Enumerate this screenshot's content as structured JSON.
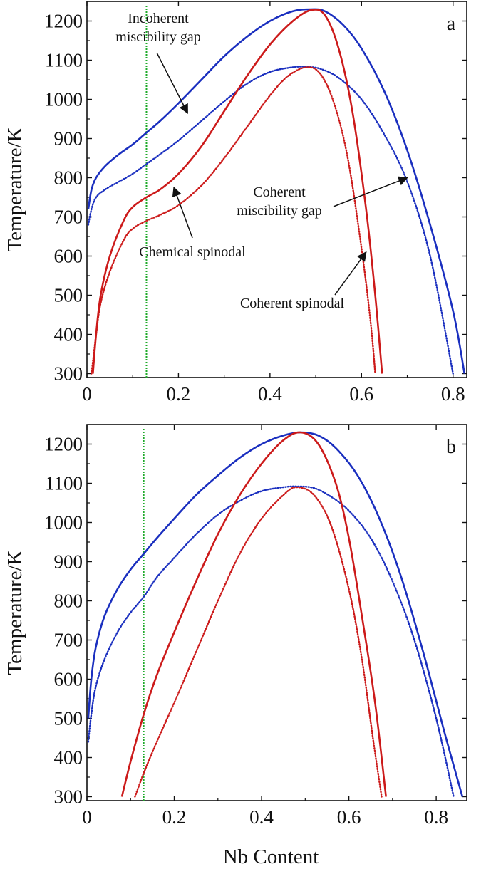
{
  "chart_data": [
    {
      "type": "line",
      "panel_label": "a",
      "ylabel": "Temperature/K",
      "xlabel": "",
      "xlim": [
        0,
        0.83
      ],
      "ylim": [
        290,
        1250
      ],
      "xticks": [
        0,
        0.2,
        0.4,
        0.6,
        0.8
      ],
      "xtick_labels": [
        "0",
        "0.2",
        "0.4",
        "0.6",
        "0.8"
      ],
      "yticks": [
        300,
        400,
        500,
        600,
        700,
        800,
        900,
        1000,
        1100,
        1200
      ],
      "ytick_labels": [
        "300",
        "400",
        "500",
        "600",
        "700",
        "800",
        "900",
        "1000",
        "1100",
        "1200"
      ],
      "grid": false,
      "reference_line": {
        "x": 0.13,
        "color": "#1faa2a",
        "style": "dotted"
      },
      "series": [
        {
          "color": "#1a2fbf",
          "style": "solid",
          "x": [
            0.003,
            0.01,
            0.02,
            0.04,
            0.07,
            0.1,
            0.13,
            0.16,
            0.2,
            0.25,
            0.3,
            0.35,
            0.4,
            0.45,
            0.49,
            0.52,
            0.56,
            0.6,
            0.65,
            0.7,
            0.75,
            0.8,
            0.825
          ],
          "y": [
            720,
            770,
            800,
            830,
            860,
            885,
            915,
            945,
            990,
            1050,
            1110,
            1160,
            1200,
            1225,
            1230,
            1225,
            1190,
            1130,
            1020,
            870,
            680,
            460,
            300
          ]
        },
        {
          "color": "#1a2fbf",
          "style": "dotted",
          "x": [
            0.003,
            0.01,
            0.02,
            0.04,
            0.07,
            0.1,
            0.13,
            0.16,
            0.2,
            0.25,
            0.3,
            0.35,
            0.4,
            0.45,
            0.48,
            0.51,
            0.55,
            0.6,
            0.65,
            0.7,
            0.75,
            0.8
          ],
          "y": [
            680,
            720,
            750,
            770,
            790,
            810,
            835,
            860,
            895,
            945,
            995,
            1040,
            1070,
            1082,
            1083,
            1078,
            1055,
            1000,
            910,
            790,
            600,
            300
          ]
        },
        {
          "color": "#cc1a1a",
          "style": "solid",
          "x": [
            0.013,
            0.02,
            0.03,
            0.05,
            0.08,
            0.1,
            0.13,
            0.16,
            0.2,
            0.25,
            0.3,
            0.35,
            0.4,
            0.45,
            0.49,
            0.52,
            0.55,
            0.58,
            0.61,
            0.63,
            0.645
          ],
          "y": [
            300,
            400,
            500,
            600,
            690,
            725,
            750,
            770,
            810,
            880,
            970,
            1060,
            1140,
            1200,
            1228,
            1215,
            1130,
            970,
            720,
            500,
            300
          ]
        },
        {
          "color": "#cc1a1a",
          "style": "dotted",
          "x": [
            0.01,
            0.02,
            0.03,
            0.05,
            0.08,
            0.1,
            0.13,
            0.16,
            0.2,
            0.25,
            0.3,
            0.35,
            0.4,
            0.44,
            0.48,
            0.51,
            0.54,
            0.57,
            0.6,
            0.62,
            0.63
          ],
          "y": [
            300,
            400,
            480,
            560,
            640,
            670,
            690,
            705,
            730,
            780,
            850,
            930,
            1010,
            1060,
            1082,
            1065,
            990,
            850,
            620,
            430,
            300
          ]
        }
      ],
      "annotations": [
        {
          "lines": [
            "Incoherent",
            "miscibility gap"
          ],
          "target": [
            0.22,
            965
          ]
        },
        {
          "lines": [
            "Chemical spinodal"
          ],
          "target": [
            0.19,
            775
          ]
        },
        {
          "lines": [
            "Coherent",
            "miscibility gap"
          ],
          "target": [
            0.7,
            800
          ]
        },
        {
          "lines": [
            "Coherent spinodal"
          ],
          "target": [
            0.61,
            610
          ]
        }
      ]
    },
    {
      "type": "line",
      "panel_label": "b",
      "ylabel": "Temperature/K",
      "xlabel": "Nb Content",
      "xlim": [
        0,
        0.87
      ],
      "ylim": [
        290,
        1250
      ],
      "xticks": [
        0,
        0.2,
        0.4,
        0.6,
        0.8
      ],
      "xtick_labels": [
        "0",
        "0.2",
        "0.4",
        "0.6",
        "0.8"
      ],
      "yticks": [
        300,
        400,
        500,
        600,
        700,
        800,
        900,
        1000,
        1100,
        1200
      ],
      "ytick_labels": [
        "300",
        "400",
        "500",
        "600",
        "700",
        "800",
        "900",
        "1000",
        "1100",
        "1200"
      ],
      "grid": false,
      "reference_line": {
        "x": 0.13,
        "color": "#1faa2a",
        "style": "dotted"
      },
      "series": [
        {
          "color": "#1a2fbf",
          "style": "solid",
          "x": [
            0.003,
            0.01,
            0.02,
            0.04,
            0.07,
            0.1,
            0.13,
            0.16,
            0.2,
            0.25,
            0.3,
            0.35,
            0.4,
            0.45,
            0.49,
            0.53,
            0.57,
            0.62,
            0.67,
            0.72,
            0.77,
            0.82,
            0.86
          ],
          "y": [
            500,
            600,
            680,
            760,
            830,
            880,
            920,
            960,
            1010,
            1070,
            1120,
            1165,
            1200,
            1222,
            1230,
            1222,
            1190,
            1120,
            1010,
            860,
            670,
            460,
            300
          ]
        },
        {
          "color": "#1a2fbf",
          "style": "dotted",
          "x": [
            0.003,
            0.01,
            0.02,
            0.04,
            0.07,
            0.1,
            0.13,
            0.16,
            0.2,
            0.25,
            0.3,
            0.35,
            0.4,
            0.45,
            0.48,
            0.52,
            0.56,
            0.6,
            0.65,
            0.7,
            0.75,
            0.8,
            0.84
          ],
          "y": [
            440,
            510,
            580,
            650,
            720,
            770,
            810,
            860,
            910,
            970,
            1020,
            1055,
            1080,
            1090,
            1092,
            1088,
            1065,
            1030,
            960,
            850,
            700,
            500,
            300
          ]
        },
        {
          "color": "#cc1a1a",
          "style": "solid",
          "x": [
            0.08,
            0.1,
            0.13,
            0.16,
            0.2,
            0.25,
            0.3,
            0.35,
            0.4,
            0.45,
            0.49,
            0.53,
            0.57,
            0.6,
            0.63,
            0.66,
            0.685
          ],
          "y": [
            300,
            390,
            510,
            610,
            720,
            850,
            970,
            1070,
            1150,
            1210,
            1230,
            1200,
            1100,
            960,
            760,
            540,
            300
          ]
        },
        {
          "color": "#cc1a1a",
          "style": "dotted",
          "x": [
            0.11,
            0.13,
            0.16,
            0.2,
            0.25,
            0.3,
            0.35,
            0.4,
            0.45,
            0.48,
            0.52,
            0.56,
            0.6,
            0.63,
            0.655,
            0.675
          ],
          "y": [
            300,
            360,
            440,
            540,
            670,
            800,
            920,
            1010,
            1070,
            1090,
            1070,
            990,
            830,
            650,
            450,
            300
          ]
        }
      ],
      "annotations": []
    }
  ]
}
